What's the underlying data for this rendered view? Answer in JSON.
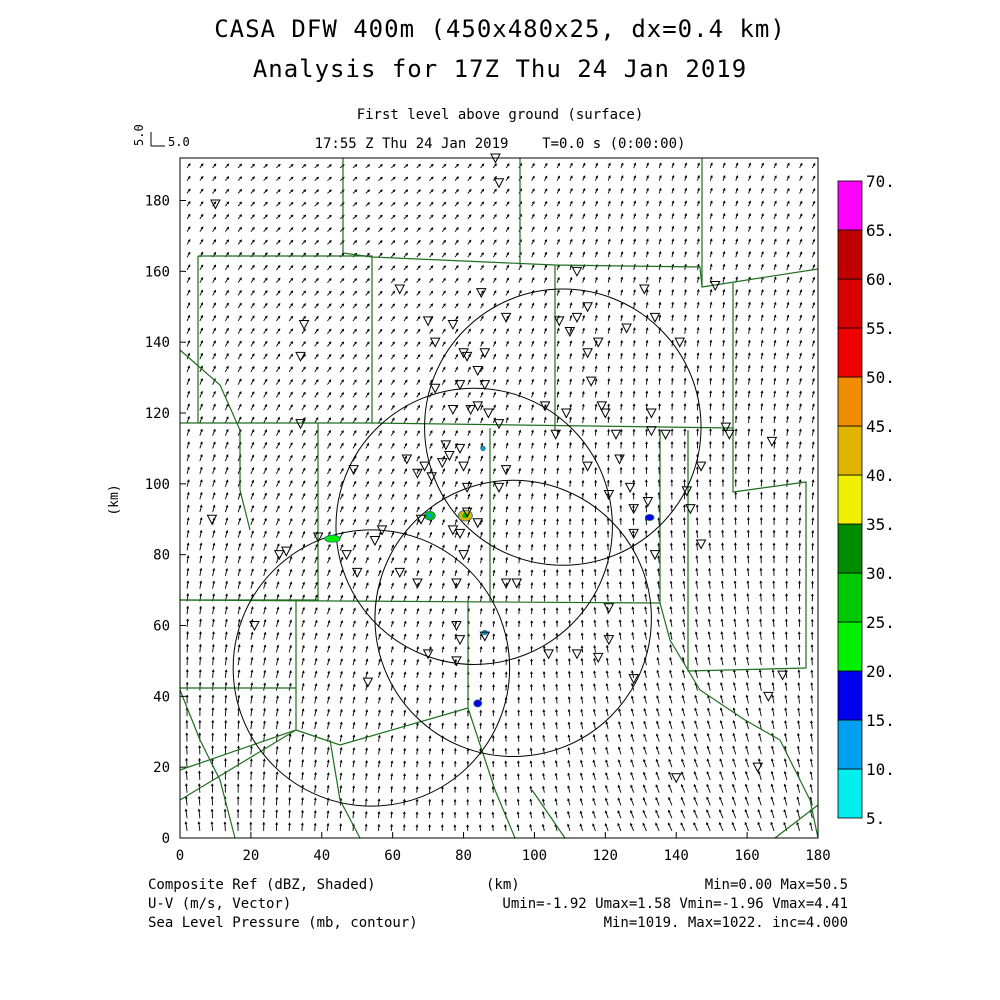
{
  "title": {
    "line1": "CASA DFW 400m (450x480x25, dx=0.4 km)",
    "line2": "Analysis for 17Z Thu 24 Jan 2019"
  },
  "subtitle": {
    "level": "First level above ground (surface)",
    "time": "17:55 Z Thu 24 Jan 2019    T=0.0 s (0:00:00)"
  },
  "vector_key": {
    "label": "5.0",
    "rotated_label": "5.0"
  },
  "axes": {
    "x_ticks": [
      "0",
      "20",
      "40",
      "60",
      "80",
      "100",
      "120",
      "140",
      "160",
      "180"
    ],
    "y_ticks": [
      "0",
      "20",
      "40",
      "60",
      "80",
      "100",
      "120",
      "140",
      "160",
      "180"
    ],
    "x_label": "(km)",
    "y_label": "(km)"
  },
  "colorbar": {
    "labels": [
      "5.",
      "10.",
      "15.",
      "20.",
      "25.",
      "30.",
      "35.",
      "40.",
      "45.",
      "50.",
      "55.",
      "60.",
      "65.",
      "70."
    ],
    "colors": [
      "#00eeee",
      "#00a0f0",
      "#0000f0",
      "#00f000",
      "#00c800",
      "#008c00",
      "#f0f000",
      "#e0b400",
      "#f08c00",
      "#f00000",
      "#d80000",
      "#c00000",
      "#ff00ff"
    ]
  },
  "footer": {
    "left1": "Composite Ref (dBZ, Shaded)",
    "center1": "(km)",
    "right1": "Min=0.00 Max=50.5",
    "left2": "U-V (m/s, Vector)",
    "right2": "Umin=-1.92 Umax=1.58 Vmin=-1.96 Vmax=4.41",
    "left3": "Sea Level Pressure (mb, contour)",
    "right3": "Min=1019. Max=1022. inc=4.000"
  },
  "map": {
    "x_range_km": [
      0,
      180
    ],
    "y_range_km": [
      0,
      192
    ],
    "radar_rings_km": [
      {
        "cx": 108,
        "cy": 116,
        "r": 39
      },
      {
        "cx": 83,
        "cy": 88,
        "r": 39
      },
      {
        "cx": 94,
        "cy": 62,
        "r": 39
      },
      {
        "cx": 54,
        "cy": 48,
        "r": 39
      }
    ],
    "stations_km": [
      [
        10,
        179
      ],
      [
        89,
        192
      ],
      [
        90,
        185
      ],
      [
        85,
        154
      ],
      [
        92,
        147
      ],
      [
        62,
        155
      ],
      [
        70,
        146
      ],
      [
        77,
        145
      ],
      [
        72,
        140
      ],
      [
        80,
        137
      ],
      [
        81,
        136
      ],
      [
        86,
        137
      ],
      [
        84,
        132
      ],
      [
        79,
        128
      ],
      [
        86,
        128
      ],
      [
        72,
        127
      ],
      [
        84,
        122
      ],
      [
        87,
        120
      ],
      [
        77,
        121
      ],
      [
        82,
        121
      ],
      [
        90,
        117
      ],
      [
        75,
        111
      ],
      [
        79,
        110
      ],
      [
        64,
        107
      ],
      [
        69,
        105
      ],
      [
        74,
        106
      ],
      [
        80,
        105
      ],
      [
        76,
        108
      ],
      [
        71,
        102
      ],
      [
        81,
        99
      ],
      [
        67,
        103
      ],
      [
        90,
        99
      ],
      [
        49,
        104
      ],
      [
        57,
        87
      ],
      [
        81,
        92
      ],
      [
        84,
        89
      ],
      [
        79,
        86
      ],
      [
        77,
        87
      ],
      [
        30,
        81
      ],
      [
        28,
        80
      ],
      [
        34,
        117
      ],
      [
        35,
        145
      ],
      [
        34,
        136
      ],
      [
        9,
        90
      ],
      [
        21,
        60
      ],
      [
        39,
        85
      ],
      [
        55,
        84
      ],
      [
        62,
        75
      ],
      [
        67,
        72
      ],
      [
        78,
        72
      ],
      [
        80,
        80
      ],
      [
        47,
        80
      ],
      [
        50,
        75
      ],
      [
        78,
        60
      ],
      [
        78,
        50
      ],
      [
        70,
        52
      ],
      [
        53,
        44
      ],
      [
        79,
        56
      ],
      [
        86,
        57
      ],
      [
        92,
        72
      ],
      [
        95,
        72
      ],
      [
        104,
        52
      ],
      [
        112,
        52
      ],
      [
        118,
        51
      ],
      [
        121,
        56
      ],
      [
        106,
        114
      ],
      [
        115,
        105
      ],
      [
        107,
        146
      ],
      [
        110,
        143
      ],
      [
        112,
        147
      ],
      [
        115,
        137
      ],
      [
        118,
        140
      ],
      [
        116,
        129
      ],
      [
        126,
        144
      ],
      [
        131,
        155
      ],
      [
        134,
        147
      ],
      [
        133,
        120
      ],
      [
        137,
        114
      ],
      [
        123,
        114
      ],
      [
        133,
        115
      ],
      [
        124,
        107
      ],
      [
        121,
        97
      ],
      [
        127,
        99
      ],
      [
        128,
        93
      ],
      [
        132,
        95
      ],
      [
        128,
        86
      ],
      [
        134,
        80
      ],
      [
        143,
        98
      ],
      [
        144,
        93
      ],
      [
        147,
        83
      ],
      [
        147,
        105
      ],
      [
        141,
        140
      ],
      [
        151,
        156
      ],
      [
        154,
        116
      ],
      [
        155,
        114
      ],
      [
        167,
        112
      ],
      [
        170,
        46
      ],
      [
        166,
        40
      ],
      [
        163,
        20
      ],
      [
        121,
        65
      ],
      [
        128,
        45
      ],
      [
        120,
        120
      ],
      [
        115,
        150
      ],
      [
        112,
        160
      ],
      [
        119,
        122
      ],
      [
        109,
        120
      ],
      [
        92,
        104
      ],
      [
        68,
        90
      ],
      [
        103,
        122
      ],
      [
        140,
        17
      ]
    ],
    "echoes_km": [
      {
        "x": 43,
        "y": 84.5,
        "w": 3.5,
        "h": 1.6,
        "dbz": 20
      },
      {
        "x": 70.5,
        "y": 91,
        "w": 2.4,
        "h": 2.0,
        "dbz": 25
      },
      {
        "x": 80.5,
        "y": 91,
        "w": 3.2,
        "h": 2.4,
        "dbz": 40
      },
      {
        "x": 132.5,
        "y": 90.5,
        "w": 2.0,
        "h": 1.4,
        "dbz": 15
      },
      {
        "x": 85.5,
        "y": 110,
        "w": 1.0,
        "h": 1.0,
        "dbz": 10
      },
      {
        "x": 86,
        "y": 58,
        "w": 1.2,
        "h": 1.0,
        "dbz": 10
      },
      {
        "x": 84,
        "y": 38,
        "w": 1.8,
        "h": 1.6,
        "dbz": 15
      }
    ]
  }
}
